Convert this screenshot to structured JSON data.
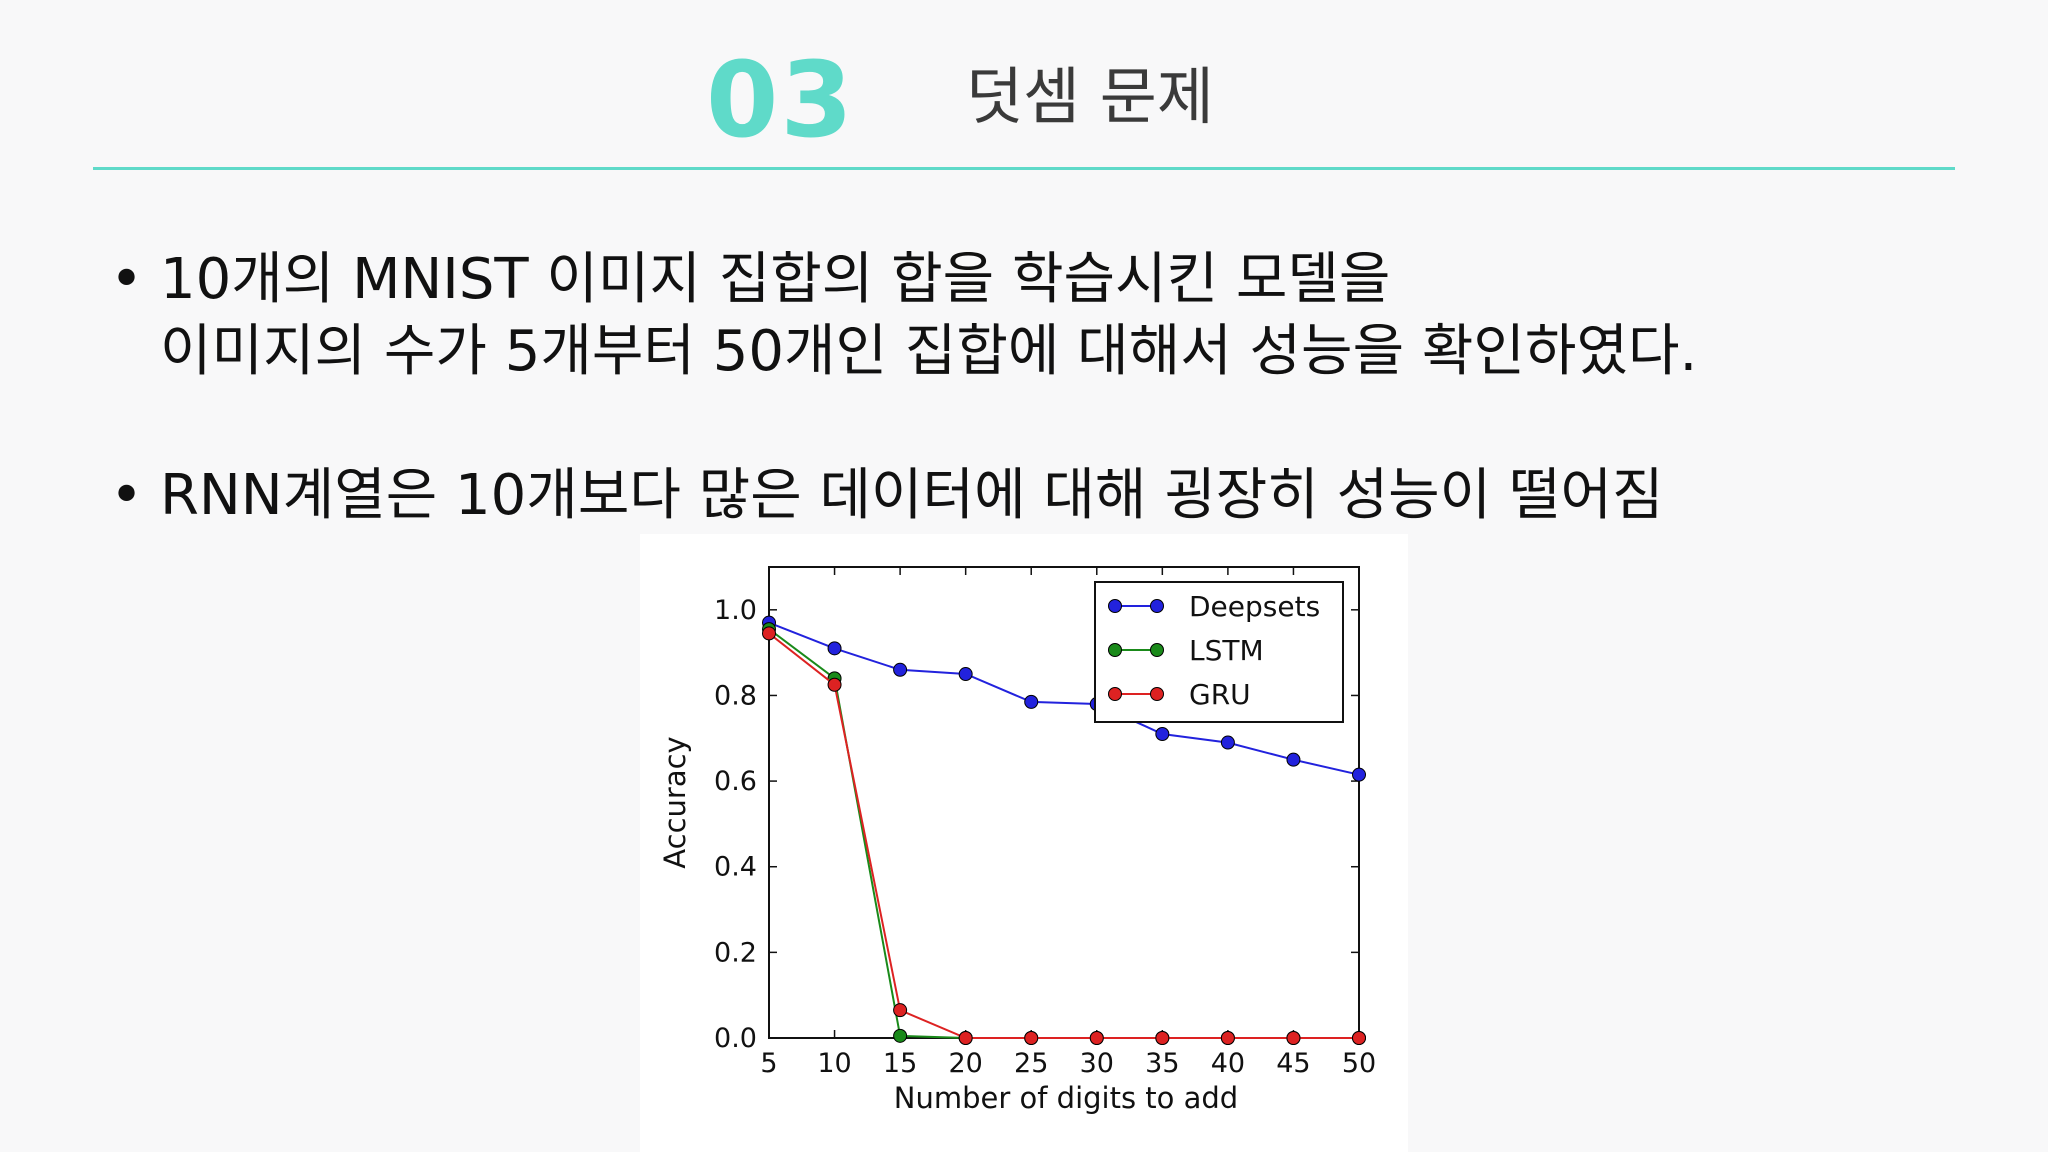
{
  "slide": {
    "number": "03",
    "title": "덧셈 문제",
    "bullets": [
      {
        "symbol": "•",
        "lines": [
          "10개의 MNIST 이미지 집합의 합을 학습시킨 모델을",
          "이미지의 수가 5개부터 50개인 집합에 대해서 성능을 확인하였다."
        ]
      },
      {
        "symbol": "•",
        "lines": [
          "RNN계열은 10개보다 많은 데이터에 대해 굉장히 성능이 떨어짐"
        ]
      }
    ],
    "colors": {
      "accent": "#5fdac9",
      "text": "#111111",
      "title": "#3a3a3a"
    }
  },
  "chart_data": {
    "type": "line",
    "title": "",
    "xlabel": "Number of digits to add",
    "ylabel": "Accuracy",
    "x": [
      5,
      10,
      15,
      20,
      25,
      30,
      35,
      40,
      45,
      50
    ],
    "xlim": [
      5,
      50
    ],
    "ylim": [
      0,
      1.1
    ],
    "xticks": [
      5,
      10,
      15,
      20,
      25,
      30,
      35,
      40,
      45,
      50
    ],
    "yticks": [
      0.0,
      0.2,
      0.4,
      0.6,
      0.8,
      1.0
    ],
    "ytick_labels": [
      "0.0",
      "0.2",
      "0.4",
      "0.6",
      "0.8",
      "1.0"
    ],
    "grid": false,
    "legend_position": "top-right",
    "series": [
      {
        "name": "Deepsets",
        "color": "#2222dd",
        "values": [
          0.97,
          0.91,
          0.86,
          0.85,
          0.785,
          0.78,
          0.71,
          0.69,
          0.65,
          0.615
        ]
      },
      {
        "name": "LSTM",
        "color": "#1a8a1a",
        "values": [
          0.955,
          0.84,
          0.005,
          0.0,
          0.0,
          0.0,
          0.0,
          0.0,
          0.0,
          0.0
        ]
      },
      {
        "name": "GRU",
        "color": "#dd2222",
        "values": [
          0.945,
          0.825,
          0.065,
          0.0,
          0.0,
          0.0,
          0.0,
          0.0,
          0.0,
          0.0
        ]
      }
    ]
  }
}
